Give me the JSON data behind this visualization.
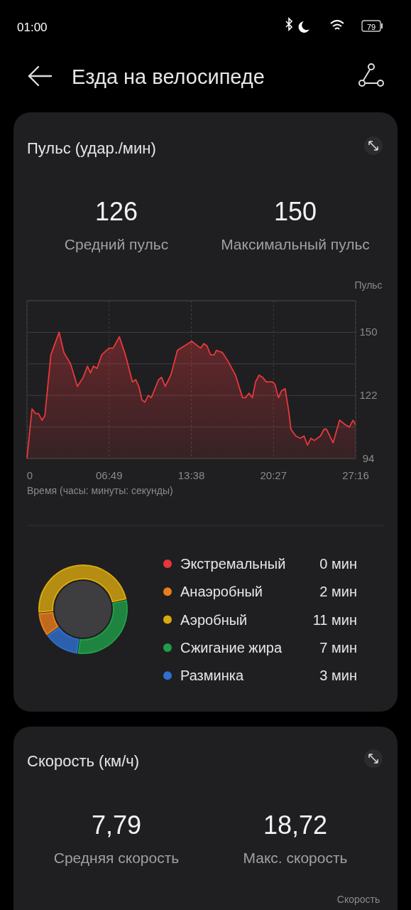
{
  "chart_data": [
    {
      "type": "other",
      "title": "Езда на велосипеде",
      "annotations": [
        "01:00",
        "79"
      ]
    },
    {
      "type": "area",
      "title": "Пульс (удар./мин)",
      "annotations": [
        "126",
        "Средний пульс",
        "150",
        "Максимальный пульс"
      ],
      "xlabel": "Время (часы: минуты: секунды)",
      "ylabel": "Пульс",
      "color": "#e8383d",
      "x": [
        0,
        25,
        42,
        57,
        75,
        89,
        119,
        160,
        184,
        217,
        251,
        280,
        301,
        316,
        331,
        349,
        372,
        408,
        429,
        460,
        490,
        525,
        541,
        557,
        572,
        587,
        604,
        619,
        655,
        670,
        688,
        716,
        749,
        784,
        820,
        864,
        881,
        896,
        914,
        932,
        943,
        973,
        1002,
        1038,
        1073,
        1088,
        1105,
        1122,
        1138,
        1155,
        1173,
        1191,
        1222,
        1234,
        1252,
        1267,
        1285,
        1303,
        1314,
        1338,
        1361,
        1379,
        1396,
        1414,
        1430,
        1461,
        1479,
        1491,
        1524,
        1556,
        1585,
        1605,
        1623,
        1635
      ],
      "values": [
        94,
        116,
        114,
        114,
        111,
        113,
        140,
        150,
        141,
        136,
        126,
        130,
        135,
        132,
        135,
        134,
        140,
        143,
        143,
        148,
        140,
        128,
        129,
        126,
        120,
        119,
        122,
        121,
        129,
        130,
        126,
        131,
        142,
        144,
        146,
        143,
        145,
        144,
        140,
        140,
        142,
        141,
        137,
        131,
        121,
        121,
        123,
        121,
        128,
        131,
        130,
        128,
        128,
        127,
        121,
        124,
        125,
        115,
        107,
        104,
        103,
        104,
        100,
        103,
        102,
        104,
        107,
        107,
        101,
        111,
        109,
        108,
        111,
        109
      ],
      "xlim": [
        0,
        1636
      ],
      "ylim": [
        94,
        164
      ],
      "xticks": [
        {
          "value": 0,
          "label": "0"
        },
        {
          "value": 409,
          "label": "06:49"
        },
        {
          "value": 818,
          "label": "13:38"
        },
        {
          "value": 1227,
          "label": "20:27"
        },
        {
          "value": 1636,
          "label": "27:16"
        }
      ],
      "yticks": [
        94,
        {
          "value": 108,
          "label": null
        },
        122,
        {
          "value": 136,
          "label": null
        },
        150,
        {
          "value": 164,
          "label": null
        }
      ],
      "grid": true
    },
    {
      "type": "donut",
      "categories": [
        "Экстремальный",
        "Анаэробный",
        "Аэробный",
        "Сжигание жира",
        "Разминка"
      ],
      "values": [
        0,
        2,
        11,
        7,
        3
      ],
      "value_labels": [
        "0 мин",
        "2 мин",
        "11 мин",
        "7 мин",
        "3 мин"
      ],
      "colors": [
        "#e8373a",
        "#e87d1e",
        "#d9a90f",
        "#1f9e48",
        "#2f6fcf"
      ],
      "legend": "right"
    },
    {
      "type": "other",
      "title": "Скорость (км/ч)",
      "annotations": [
        "7,79",
        "Средняя скорость",
        "18,72",
        "Макс. скорость",
        "Скорость"
      ]
    }
  ]
}
